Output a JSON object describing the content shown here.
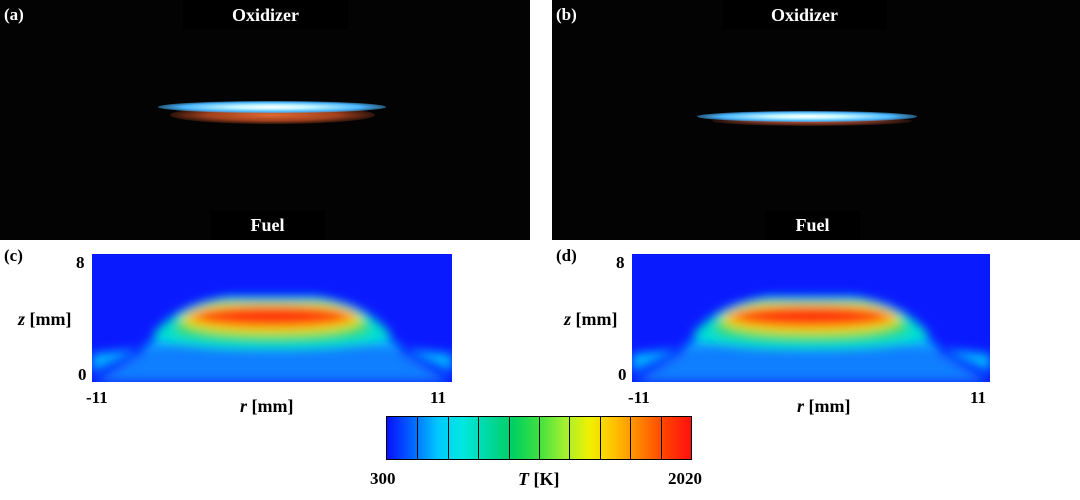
{
  "photos": [
    {
      "label": "(a)",
      "top_text": "Oxidizer",
      "bottom_text": "Fuel"
    },
    {
      "label": "(b)",
      "top_text": "Oxidizer",
      "bottom_text": "Fuel"
    }
  ],
  "fields": [
    {
      "label": "(c)",
      "z_axis_var": "z",
      "z_axis_unit": "[mm]",
      "z_ticks": [
        "8",
        "0"
      ],
      "r_axis_var": "r",
      "r_axis_unit": "[mm]",
      "r_ticks": [
        "-11",
        "11"
      ]
    },
    {
      "label": "(d)",
      "z_axis_var": "z",
      "z_axis_unit": "[mm]",
      "z_ticks": [
        "8",
        "0"
      ],
      "r_axis_var": "r",
      "r_axis_unit": "[mm]",
      "r_ticks": [
        "-11",
        "11"
      ]
    }
  ],
  "colorbar": {
    "min_label": "300",
    "max_label": "2020",
    "var": "T",
    "unit": "[K]",
    "colors": [
      "#0a10ff",
      "#0066ff",
      "#00c8ff",
      "#00e8e0",
      "#00d8a0",
      "#00d060",
      "#40e040",
      "#a0f030",
      "#f0f000",
      "#ffc000",
      "#ff8000",
      "#ff4000",
      "#ff1010"
    ]
  }
}
